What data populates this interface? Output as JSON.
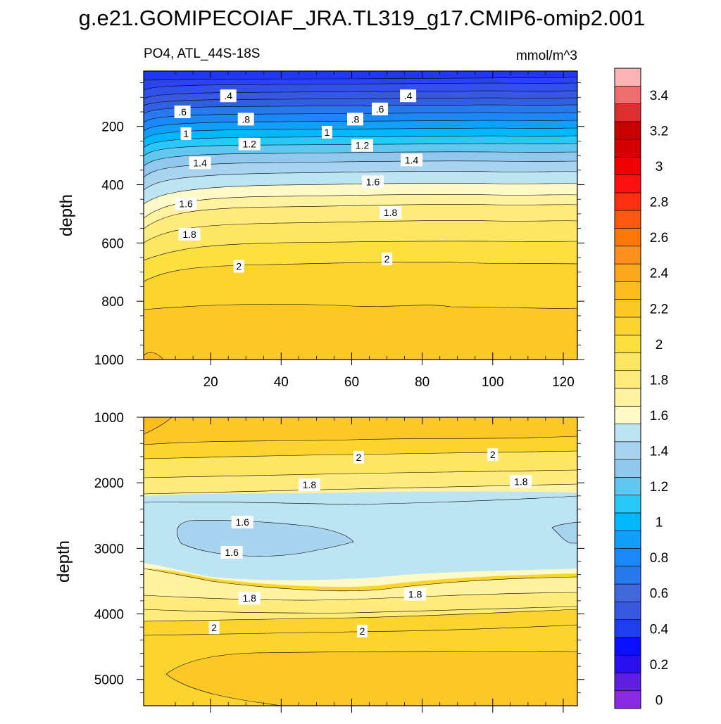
{
  "title": "g.e21.GOMIPECOIAF_JRA.TL319_g17.CMIP6-omip2.001",
  "chart_data": [
    {
      "type": "contour",
      "panel": "upper",
      "title_left": "PO4, ATL_44S-18S",
      "units": "mmol/m^3",
      "xlim": [
        1,
        124
      ],
      "ylim": [
        1000,
        10
      ],
      "ylabel": "depth",
      "xticks": [
        20,
        40,
        60,
        80,
        100,
        120
      ],
      "xtick_labels": [
        "20",
        "40",
        "60",
        "80",
        "100",
        "120"
      ],
      "yticks": [
        200,
        400,
        600,
        800,
        1000
      ],
      "ytick_labels": [
        "200",
        "400",
        "600",
        "800",
        "1000"
      ],
      "contour_labels": [
        {
          "text": ".4",
          "x": 25,
          "y": 95
        },
        {
          "text": ".4",
          "x": 76,
          "y": 95
        },
        {
          "text": ".6",
          "x": 12,
          "y": 150
        },
        {
          "text": ".6",
          "x": 68,
          "y": 140
        },
        {
          "text": ".8",
          "x": 30,
          "y": 175
        },
        {
          "text": ".8",
          "x": 61,
          "y": 175
        },
        {
          "text": "1",
          "x": 13,
          "y": 225
        },
        {
          "text": "1",
          "x": 53,
          "y": 220
        },
        {
          "text": "1.2",
          "x": 31,
          "y": 260
        },
        {
          "text": "1.2",
          "x": 63,
          "y": 265
        },
        {
          "text": "1.4",
          "x": 17,
          "y": 325
        },
        {
          "text": "1.4",
          "x": 77,
          "y": 315
        },
        {
          "text": "1.6",
          "x": 66,
          "y": 390
        },
        {
          "text": "1.6",
          "x": 13,
          "y": 465
        },
        {
          "text": "1.8",
          "x": 71,
          "y": 495
        },
        {
          "text": "1.8",
          "x": 14,
          "y": 570
        },
        {
          "text": "2",
          "x": 28,
          "y": 680
        },
        {
          "text": "2",
          "x": 70,
          "y": 655
        }
      ]
    },
    {
      "type": "contour",
      "panel": "lower",
      "xlim": [
        1,
        124
      ],
      "ylim": [
        5400,
        1000
      ],
      "ylabel": "depth",
      "yticks": [
        1000,
        2000,
        3000,
        4000,
        5000
      ],
      "ytick_labels": [
        "1000",
        "2000",
        "3000",
        "4000",
        "5000"
      ],
      "contour_labels": [
        {
          "text": "2",
          "x": 62,
          "y": 1610
        },
        {
          "text": "2",
          "x": 100,
          "y": 1570
        },
        {
          "text": "1.8",
          "x": 48,
          "y": 2030
        },
        {
          "text": "1.8",
          "x": 108,
          "y": 1980
        },
        {
          "text": "1.6",
          "x": 29,
          "y": 2600
        },
        {
          "text": "1.6",
          "x": 26,
          "y": 3060
        },
        {
          "text": "1.8",
          "x": 31,
          "y": 3760
        },
        {
          "text": "1.8",
          "x": 78,
          "y": 3700
        },
        {
          "text": "2",
          "x": 21,
          "y": 4210
        },
        {
          "text": "2",
          "x": 63,
          "y": 4260
        }
      ]
    }
  ],
  "colorbar": {
    "labels": [
      "0",
      "0.2",
      "0.4",
      "0.6",
      "0.8",
      "1",
      "1.2",
      "1.4",
      "1.6",
      "1.8",
      "2",
      "2.2",
      "2.4",
      "2.6",
      "2.8",
      "3",
      "3.2",
      "3.4"
    ],
    "colors": [
      "#8a2be2",
      "#5f1fe0",
      "#2a10ee",
      "#0a10ff",
      "#2040f0",
      "#3858e0",
      "#4068d8",
      "#2878ee",
      "#1a88f8",
      "#10a0fc",
      "#00b8ff",
      "#28c8f8",
      "#60c8f0",
      "#90c8ee",
      "#a8d4f0",
      "#bce4f2",
      "#fffac8",
      "#fff2a0",
      "#ffec7c",
      "#fde664",
      "#fce040",
      "#fcd430",
      "#fcc828",
      "#fcbc1e",
      "#fca81e",
      "#fc901c",
      "#fc7808",
      "#fc5810",
      "#fc3010",
      "#fc1010",
      "#f00000",
      "#d40000",
      "#c80000",
      "#dc3030",
      "#ec6e6e",
      "#fcb4b4"
    ]
  }
}
